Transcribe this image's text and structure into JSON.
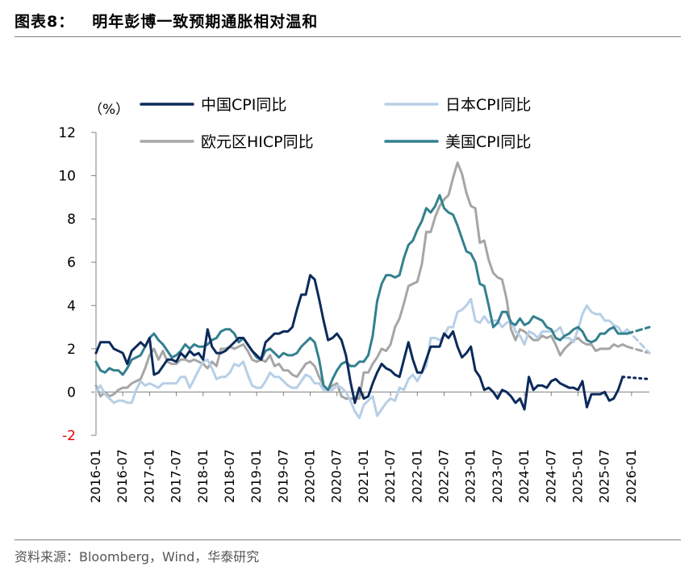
{
  "header": {
    "figure_no": "图表8：",
    "title": "明年彭博一致预期通胀相对温和"
  },
  "footer": {
    "source": "资料来源：Bloomberg，Wind，华泰研究"
  },
  "colors": {
    "china": "#0c2a5b",
    "japan": "#b7cfe6",
    "euro": "#a6a6a6",
    "us": "#33808f",
    "negative_tick": "#e60000",
    "axis": "#808080"
  },
  "chart_data": {
    "type": "line",
    "unit_label": "（%）",
    "ylim": [
      -2,
      12
    ],
    "yticks": [
      -2,
      0,
      2,
      4,
      6,
      8,
      10,
      12
    ],
    "ytick_labels": [
      "-2",
      "0",
      "2",
      "4",
      "6",
      "8",
      "10",
      "12"
    ],
    "x_start": "2016-01",
    "x_index_range": [
      0,
      124
    ],
    "xticks": [
      "2016-01",
      "2016-07",
      "2017-01",
      "2017-07",
      "2018-01",
      "2018-07",
      "2019-01",
      "2019-07",
      "2020-01",
      "2020-07",
      "2021-01",
      "2021-07",
      "2022-01",
      "2022-07",
      "2023-01",
      "2023-07",
      "2024-01",
      "2024-07",
      "2025-01",
      "2025-07",
      "2026-01"
    ],
    "legend": [
      {
        "name": "中国CPI同比",
        "color_key": "china"
      },
      {
        "name": "日本CPI同比",
        "color_key": "japan"
      },
      {
        "name": "欧元区HICP同比",
        "color_key": "euro"
      },
      {
        "name": "美国CPI同比",
        "color_key": "us"
      }
    ],
    "series": [
      {
        "name": "中国CPI同比",
        "color_key": "china",
        "values": [
          1.8,
          2.3,
          2.3,
          2.3,
          2.0,
          1.9,
          1.8,
          1.3,
          1.9,
          2.1,
          2.3,
          2.1,
          2.5,
          0.8,
          0.9,
          1.2,
          1.5,
          1.5,
          1.4,
          1.8,
          1.6,
          1.9,
          1.7,
          1.8,
          1.5,
          2.9,
          2.1,
          1.8,
          1.8,
          1.9,
          2.1,
          2.3,
          2.5,
          2.5,
          2.2,
          1.9,
          1.7,
          1.5,
          2.3,
          2.5,
          2.7,
          2.7,
          2.8,
          2.8,
          3.0,
          3.8,
          4.5,
          4.5,
          5.4,
          5.2,
          4.3,
          3.3,
          2.4,
          2.5,
          2.7,
          2.4,
          1.7,
          0.5,
          -0.5,
          0.2,
          -0.3,
          -0.2,
          0.4,
          0.9,
          1.3,
          1.1,
          1.0,
          0.8,
          0.7,
          1.5,
          2.3,
          1.5,
          0.9,
          0.9,
          1.5,
          2.1,
          2.1,
          2.1,
          2.7,
          2.5,
          2.8,
          2.1,
          1.6,
          1.8,
          2.1,
          1.0,
          0.7,
          0.1,
          0.2,
          0.0,
          -0.3,
          0.1,
          0.0,
          -0.2,
          -0.5,
          -0.3,
          -0.8,
          0.7,
          0.1,
          0.3,
          0.3,
          0.2,
          0.5,
          0.6,
          0.4,
          0.3,
          0.2,
          0.2,
          0.1,
          0.5,
          -0.7,
          -0.1,
          -0.1,
          -0.1,
          0.0,
          -0.4,
          -0.3,
          0.1,
          0.7
        ],
        "forecast": [
          0.7,
          0.6
        ]
      },
      {
        "name": "日本CPI同比",
        "color_key": "japan",
        "values": [
          0.0,
          0.3,
          -0.1,
          -0.3,
          -0.5,
          -0.4,
          -0.4,
          -0.5,
          -0.5,
          0.1,
          0.5,
          0.3,
          0.4,
          0.3,
          0.2,
          0.4,
          0.4,
          0.4,
          0.4,
          0.7,
          0.7,
          0.2,
          0.6,
          1.0,
          1.4,
          1.5,
          1.1,
          0.6,
          0.7,
          0.7,
          0.9,
          1.3,
          1.2,
          1.4,
          0.8,
          0.3,
          0.2,
          0.2,
          0.5,
          0.9,
          0.7,
          0.7,
          0.5,
          0.3,
          0.2,
          0.2,
          0.5,
          0.8,
          0.7,
          0.4,
          0.4,
          0.1,
          0.1,
          0.1,
          0.3,
          0.2,
          0.0,
          -0.4,
          -0.9,
          -1.2,
          -0.6,
          -0.4,
          -0.2,
          -1.1,
          -0.8,
          -0.5,
          -0.3,
          -0.4,
          0.2,
          0.1,
          0.6,
          0.8,
          0.5,
          0.9,
          1.2,
          2.5,
          2.5,
          2.4,
          2.6,
          3.0,
          3.0,
          3.7,
          3.8,
          4.0,
          4.3,
          3.3,
          3.2,
          3.5,
          3.2,
          3.3,
          3.3,
          3.0,
          3.2,
          3.3,
          2.8,
          2.6,
          2.2,
          2.8,
          2.7,
          2.5,
          2.8,
          2.8,
          2.8,
          2.8,
          3.0,
          2.5,
          2.5,
          2.3,
          2.9,
          3.6,
          4.0,
          3.7,
          3.6,
          3.6,
          3.3,
          3.3,
          3.1,
          3.0,
          2.7,
          2.9
        ],
        "forecast": [
          2.9,
          1.8
        ]
      },
      {
        "name": "欧元区HICP同比",
        "color_key": "euro",
        "values": [
          0.3,
          -0.2,
          0.0,
          -0.2,
          -0.1,
          0.1,
          0.2,
          0.2,
          0.4,
          0.5,
          0.6,
          1.1,
          1.7,
          2.0,
          1.5,
          1.9,
          1.4,
          1.3,
          1.3,
          1.5,
          1.5,
          1.4,
          1.5,
          1.4,
          1.3,
          1.1,
          1.4,
          1.2,
          2.0,
          2.0,
          2.1,
          2.0,
          2.1,
          2.2,
          1.9,
          1.5,
          1.4,
          1.5,
          1.4,
          1.7,
          1.2,
          1.3,
          1.0,
          1.0,
          0.8,
          0.7,
          1.0,
          1.3,
          1.4,
          1.2,
          0.7,
          0.3,
          0.1,
          0.3,
          0.4,
          -0.2,
          -0.3,
          -0.3,
          -0.3,
          -0.3,
          0.9,
          0.9,
          1.3,
          1.6,
          2.0,
          1.9,
          2.2,
          3.0,
          3.4,
          4.1,
          4.9,
          5.0,
          5.1,
          5.9,
          7.4,
          7.4,
          8.1,
          8.6,
          8.9,
          9.1,
          9.9,
          10.6,
          10.1,
          9.2,
          8.6,
          8.5,
          6.9,
          7.0,
          6.1,
          5.5,
          5.3,
          5.2,
          4.3,
          2.9,
          2.4,
          2.9,
          2.8,
          2.6,
          2.4,
          2.4,
          2.6,
          2.5,
          2.6,
          2.2,
          1.7,
          2.0,
          2.2,
          2.4,
          2.5,
          2.3,
          2.2,
          2.2,
          1.9,
          2.0,
          2.0,
          2.0,
          2.2,
          2.1,
          2.2,
          2.1
        ],
        "forecast": [
          2.1,
          1.8
        ]
      },
      {
        "name": "美国CPI同比",
        "color_key": "us",
        "values": [
          1.4,
          1.0,
          0.9,
          1.1,
          1.0,
          1.0,
          0.8,
          1.1,
          1.5,
          1.6,
          1.7,
          2.1,
          2.5,
          2.7,
          2.4,
          2.2,
          1.9,
          1.6,
          1.7,
          1.9,
          2.2,
          2.0,
          2.2,
          2.1,
          2.1,
          2.2,
          2.4,
          2.5,
          2.8,
          2.9,
          2.9,
          2.7,
          2.3,
          2.5,
          2.2,
          1.9,
          1.6,
          1.5,
          1.9,
          2.0,
          1.8,
          1.6,
          1.8,
          1.7,
          1.7,
          1.8,
          2.1,
          2.3,
          2.5,
          2.3,
          1.5,
          0.3,
          0.1,
          0.6,
          1.0,
          1.3,
          1.4,
          1.2,
          1.2,
          1.4,
          1.4,
          1.7,
          2.6,
          4.2,
          5.0,
          5.4,
          5.4,
          5.3,
          5.4,
          6.2,
          6.8,
          7.0,
          7.5,
          7.9,
          8.5,
          8.3,
          8.6,
          9.1,
          8.5,
          8.3,
          8.2,
          7.7,
          7.1,
          6.5,
          6.4,
          6.0,
          5.0,
          4.9,
          4.0,
          3.0,
          3.2,
          3.7,
          3.7,
          3.2,
          3.1,
          3.4,
          3.1,
          3.2,
          3.5,
          3.4,
          3.3,
          3.0,
          2.9,
          2.5,
          2.4,
          2.6,
          2.7,
          2.9,
          3.0,
          2.8,
          2.4,
          2.3,
          2.4,
          2.7,
          2.7,
          2.9,
          3.0,
          2.7,
          2.7,
          2.7
        ],
        "forecast": [
          2.7,
          3.0
        ]
      }
    ]
  }
}
